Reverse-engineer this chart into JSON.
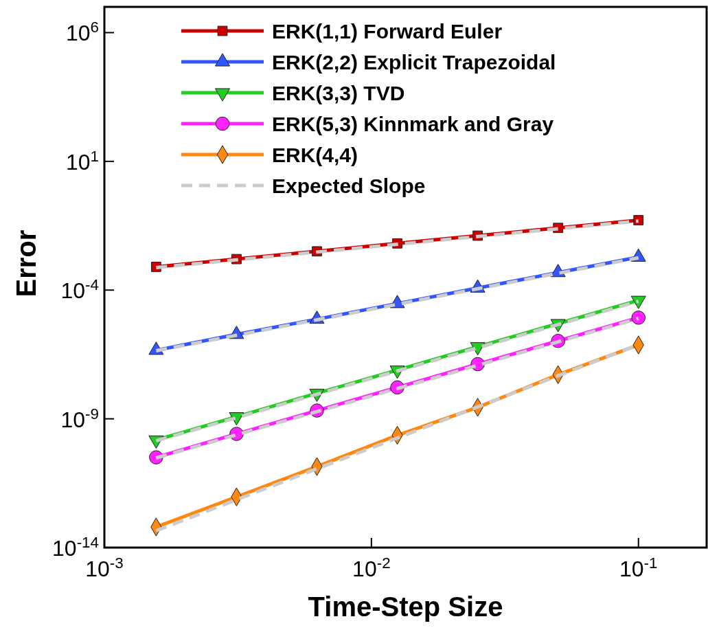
{
  "chart_data": {
    "type": "line",
    "xlabel": "Time-Step Size",
    "ylabel": "Error",
    "log": "xy",
    "legend": "top left",
    "grid": false,
    "xlim": [
      0.001,
      0.18
    ],
    "xticks": [
      {
        "value": 0.001,
        "label": "10$^{-3}$"
      },
      {
        "value": 0.01,
        "label": "10$^{-2}$"
      },
      {
        "value": 0.1,
        "label": "10$^{-1}$"
      }
    ],
    "ylim": [
      1e-14,
      10000000.0
    ],
    "yticks": [
      {
        "value": 1e-14,
        "label": "10$^{-14}$"
      },
      {
        "value": 1e-09,
        "label": "10$^{-9}$"
      },
      {
        "value": 0.0001,
        "label": "10$^{-4}$"
      },
      {
        "value": 10,
        "label": "10$^{1}$"
      },
      {
        "value": 1000000,
        "label": "10$^{6}$"
      }
    ],
    "x": [
      0.0015625,
      0.003125,
      0.00625,
      0.0125,
      0.025,
      0.05,
      0.1
    ],
    "series": [
      {
        "name": "ERK(1,1) Forward Euler",
        "color": "#cc0000",
        "marker": "square",
        "values": [
          0.0008,
          0.0016,
          0.0032,
          0.0065,
          0.013,
          0.026,
          0.052
        ]
      },
      {
        "name": "ERK(2,2) Explicit Trapezoidal",
        "color": "#3355ff",
        "marker": "triangle",
        "values": [
          4.6e-07,
          1.9e-06,
          7.4e-06,
          3e-05,
          0.00012,
          0.00048,
          0.0019
        ]
      },
      {
        "name": "ERK(3,3) TVD",
        "color": "#22cc22",
        "marker": "triangle-down",
        "values": [
          1.5e-10,
          1.2e-09,
          9.8e-09,
          7.8e-08,
          6.3e-07,
          5e-06,
          4e-05
        ]
      },
      {
        "name": "ERK(5,3) Kinnmark and Gray",
        "color": "#ff22ff",
        "marker": "circle",
        "values": [
          3.2e-11,
          2.6e-10,
          2.1e-09,
          1.66e-08,
          1.33e-07,
          1.06e-06,
          8.5e-06
        ]
      },
      {
        "name": "ERK(4,4)",
        "color": "#ff8811",
        "marker": "diamond",
        "values": [
          6.3e-14,
          9.3e-13,
          1.4e-11,
          2.3e-10,
          2.8e-09,
          5.2e-08,
          7.4e-07
        ]
      },
      {
        "name": "Expected Slope",
        "color": "#cccccc",
        "marker": "none",
        "line_style": "dashed",
        "values": [
          0.00075,
          0.0015,
          0.003,
          0.006,
          0.012,
          0.024,
          0.048
        ]
      },
      {
        "color": "#cccccc",
        "marker": "none",
        "line_style": "dashed",
        "values": [
          4.4e-07,
          1.76e-06,
          7e-06,
          2.8e-05,
          0.000113,
          0.00045,
          0.0018
        ]
      },
      {
        "color": "#cccccc",
        "marker": "none",
        "line_style": "dashed",
        "values": [
          1.4e-10,
          1.1e-09,
          9e-09,
          7.2e-08,
          5.7e-07,
          4.6e-06,
          3.7e-05
        ]
      },
      {
        "color": "#cccccc",
        "marker": "none",
        "line_style": "dashed",
        "values": [
          3e-11,
          2.4e-10,
          1.9e-09,
          1.5e-08,
          1.2e-07,
          9.8e-07,
          7.9e-06
        ]
      },
      {
        "color": "#cccccc",
        "marker": "none",
        "line_style": "dashed",
        "values": [
          4.5e-14,
          7.2e-13,
          1.15e-11,
          1.8e-10,
          2.9e-09,
          4.7e-08,
          7.5e-07
        ]
      }
    ]
  }
}
